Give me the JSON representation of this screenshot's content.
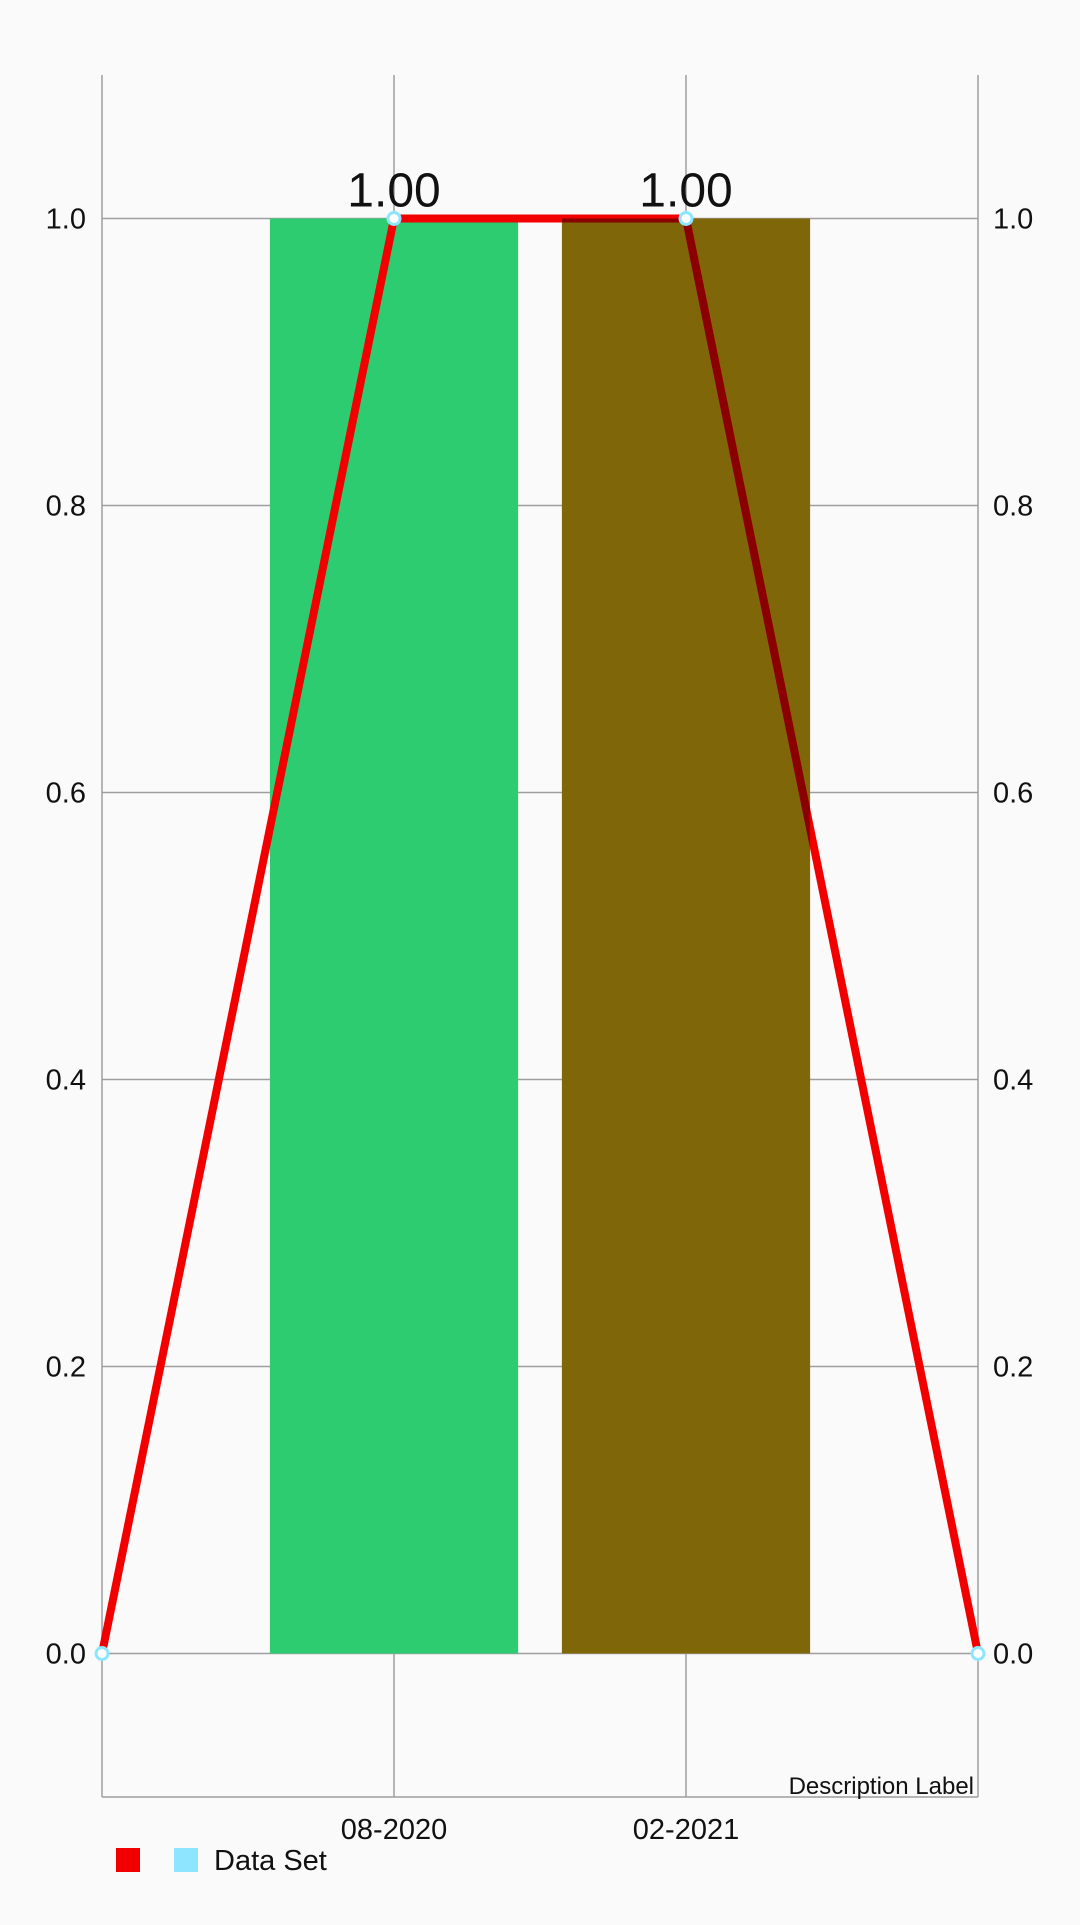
{
  "chart_data": {
    "type": "bar",
    "categories": [
      "08-2020",
      "02-2021"
    ],
    "x_axis_labels": [
      "08-2020",
      "02-2021"
    ],
    "description": "Description Label",
    "y_ticks": [
      "0.0",
      "0.2",
      "0.4",
      "0.6",
      "0.8",
      "1.0"
    ],
    "ylim": [
      -0.1,
      1.1
    ],
    "grid": true,
    "legend_placement": "bottom-left",
    "bars": [
      {
        "category": "08-2020",
        "value": 1.0,
        "color": "#2ecc71"
      },
      {
        "category": "02-2021",
        "value": 1.0,
        "color": "#7f6609"
      }
    ],
    "line": {
      "x": [
        0,
        1,
        2,
        3
      ],
      "values": [
        0.0,
        1.0,
        1.0,
        0.0
      ],
      "color": "#f20000",
      "point_color": "#8ee5ff",
      "value_labels": [
        "",
        "1.00",
        "1.00",
        ""
      ]
    },
    "legend": {
      "entries": [
        {
          "label": "",
          "color": "#f20000"
        },
        {
          "label": "Data Set",
          "color": "#8ee5ff"
        }
      ]
    }
  }
}
